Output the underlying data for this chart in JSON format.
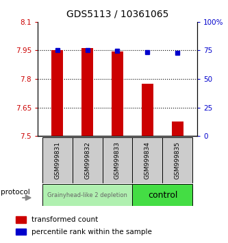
{
  "title": "GDS5113 / 10361065",
  "samples": [
    "GSM999831",
    "GSM999832",
    "GSM999833",
    "GSM999834",
    "GSM999835"
  ],
  "transformed_counts": [
    7.95,
    7.962,
    7.945,
    7.775,
    7.575
  ],
  "percentile_ranks": [
    75,
    75,
    74.5,
    73.5,
    73
  ],
  "ylim_left": [
    7.5,
    8.1
  ],
  "ylim_right": [
    0,
    100
  ],
  "yticks_left": [
    7.5,
    7.65,
    7.8,
    7.95,
    8.1
  ],
  "yticks_right": [
    0,
    25,
    50,
    75,
    100
  ],
  "ytick_labels_left": [
    "7.5",
    "7.65",
    "7.8",
    "7.95",
    "8.1"
  ],
  "ytick_labels_right": [
    "0",
    "25",
    "50",
    "75",
    "100%"
  ],
  "bar_color": "#cc0000",
  "dot_color": "#0000cc",
  "bar_bottom": 7.5,
  "group1_label": "Grainyhead-like 2 depletion",
  "group1_color": "#b0f0b0",
  "group1_text_color": "#666666",
  "group2_label": "control",
  "group2_color": "#44dd44",
  "group2_text_color": "#000000",
  "protocol_label": "protocol",
  "legend_bar_label": "transformed count",
  "legend_dot_label": "percentile rank within the sample",
  "sample_box_color": "#cccccc",
  "x_positions": [
    1,
    2,
    3,
    4,
    5
  ]
}
